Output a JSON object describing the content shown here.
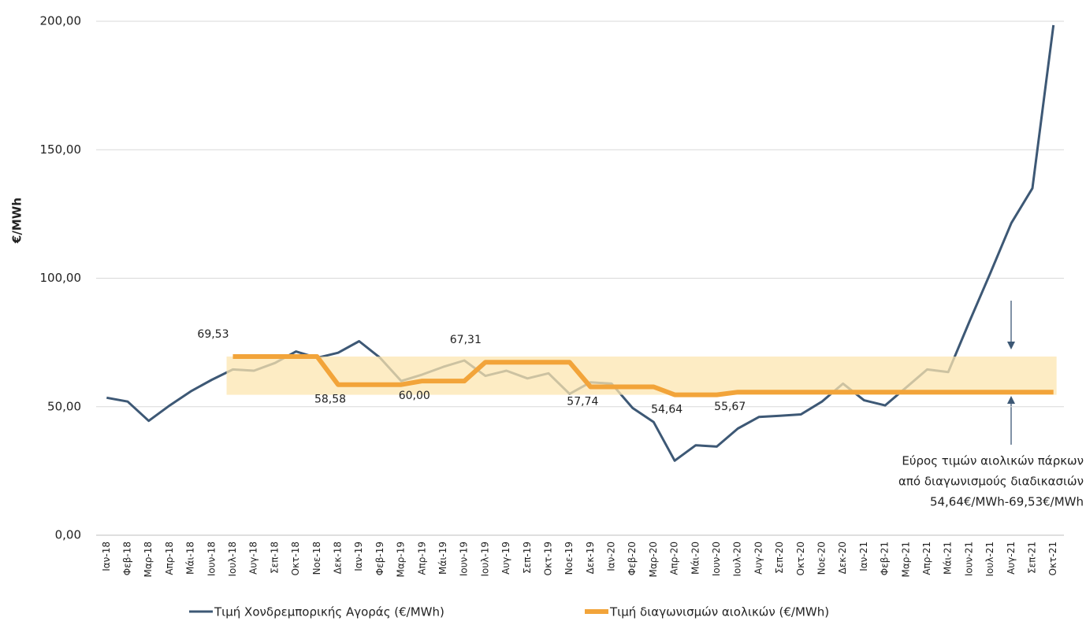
{
  "chart_data": {
    "type": "line",
    "y_label": "€/MWh",
    "categories": [
      "Ιαν-18",
      "Φεβ-18",
      "Μαρ-18",
      "Απρ-18",
      "Μάι-18",
      "Ιουν-18",
      "Ιουλ-18",
      "Αυγ-18",
      "Σεπ-18",
      "Οκτ-18",
      "Νοε-18",
      "Δεκ-18",
      "Ιαν-19",
      "Φεβ-19",
      "Μαρ-19",
      "Απρ-19",
      "Μάι-19",
      "Ιουν-19",
      "Ιουλ-19",
      "Αυγ-19",
      "Σεπ-19",
      "Οκτ-19",
      "Νοε-19",
      "Δεκ-19",
      "Ιαν-20",
      "Φεβ-20",
      "Μαρ-20",
      "Απρ-20",
      "Μάι-20",
      "Ιουν-20",
      "Ιουλ-20",
      "Αυγ-20",
      "Σεπ-20",
      "Οκτ-20",
      "Νοε-20",
      "Δεκ-20",
      "Ιαν-21",
      "Φεβ-21",
      "Μαρ-21",
      "Απρ-21",
      "Μάι-21",
      "Ιουν-21",
      "Ιουλ-21",
      "Αυγ-21",
      "Σεπ-21",
      "Οκτ-21"
    ],
    "series": [
      {
        "name": "Τιμή Χονδρεμπορικής Αγοράς (€/MWh)",
        "color": "#3d5875",
        "values": [
          53.5,
          52,
          44.5,
          50.5,
          56,
          60.5,
          64.5,
          64,
          67,
          71.5,
          69,
          71,
          75.5,
          69,
          60,
          62.5,
          65.5,
          68,
          62,
          64,
          61,
          63,
          55,
          59.5,
          59,
          49.5,
          44,
          29,
          35,
          34.5,
          41.5,
          46,
          46.5,
          47,
          52,
          59,
          52.5,
          50.5,
          57.5,
          64.5,
          63.5,
          83,
          102,
          121.5,
          135,
          198.5
        ]
      },
      {
        "name": "Τιμή διαγωνισμών αιολικών (€/MWh)",
        "color": "#f2a43a",
        "values": [
          null,
          null,
          null,
          null,
          null,
          null,
          69.53,
          69.53,
          69.53,
          69.53,
          69.53,
          58.58,
          58.58,
          58.58,
          58.58,
          60.0,
          60.0,
          60.0,
          67.31,
          67.31,
          67.31,
          67.31,
          67.31,
          57.74,
          57.74,
          57.74,
          57.74,
          54.64,
          54.64,
          54.64,
          55.67,
          55.67,
          55.67,
          55.67,
          55.67,
          55.67,
          55.67,
          55.67,
          55.67,
          55.67,
          55.67,
          55.67,
          55.67,
          55.67,
          55.67,
          55.67
        ],
        "value_labels": [
          null,
          null,
          null,
          null,
          null,
          null,
          "69,53",
          null,
          null,
          null,
          null,
          "58,58",
          null,
          null,
          null,
          "60,00",
          null,
          null,
          "67,31",
          null,
          null,
          null,
          null,
          "57,74",
          null,
          null,
          null,
          "54,64",
          null,
          null,
          "55,67",
          null,
          null,
          null,
          null,
          null,
          null,
          null,
          null,
          null,
          null,
          null,
          null,
          null,
          null,
          null
        ]
      }
    ],
    "band": {
      "from": 54.64,
      "to": 69.53,
      "color": "#fce6b0"
    },
    "annotation": [
      "Εύρος τιμών αιολικών πάρκων",
      "από διαγωνισμούς διαδικασιών",
      "54,64€/MWh-69,53€/MWh"
    ],
    "ylim": [
      0,
      200
    ],
    "yticks": [
      {
        "value": 0,
        "label": "0,00"
      },
      {
        "value": 50,
        "label": "50,00"
      },
      {
        "value": 100,
        "label": "100,00"
      },
      {
        "value": 150,
        "label": "150,00"
      },
      {
        "value": 200,
        "label": "200,00"
      }
    ],
    "grid": true,
    "legend": "bottom"
  }
}
